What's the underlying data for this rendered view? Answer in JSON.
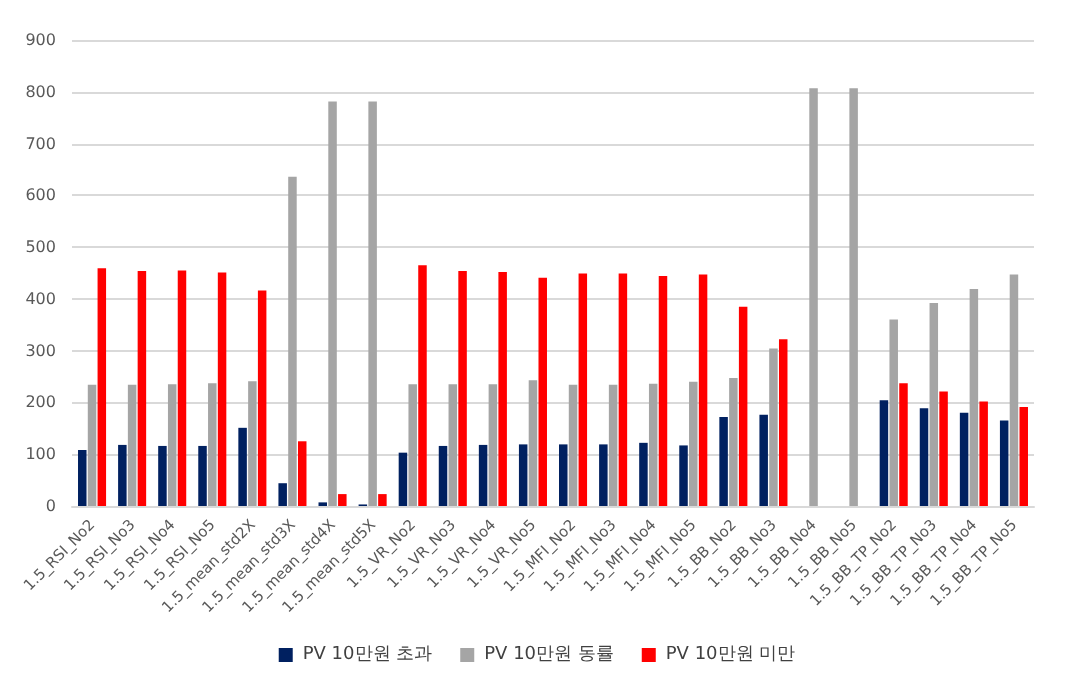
{
  "chart_data": {
    "type": "bar",
    "categories": [
      "1.5_RSI_No2",
      "1.5_RSI_No3",
      "1.5_RSI_No4",
      "1.5_RSI_No5",
      "1.5_mean_std2X",
      "1.5_mean_std3X",
      "1.5_mean_std4X",
      "1.5_mean_std5X",
      "1.5_VR_No2",
      "1.5_VR_No3",
      "1.5_VR_No4",
      "1.5_VR_No5",
      "1.5_MFI_No2",
      "1.5_MFI_No3",
      "1.5_MFI_No4",
      "1.5_MFI_No5",
      "1.5_BB_No2",
      "1.5_BB_No3",
      "1.5_BB_No4",
      "1.5_BB_No5",
      "1.5_BB_TP_No2",
      "1.5_BB_TP_No3",
      "1.5_BB_TP_No4",
      "1.5_BB_TP_No5"
    ],
    "series": [
      {
        "name": "PV 10만원 초과",
        "color": "#002060",
        "values": [
          108,
          118,
          116,
          116,
          151,
          44,
          7,
          3,
          103,
          116,
          118,
          119,
          119,
          119,
          122,
          117,
          172,
          176,
          0,
          0,
          204,
          189,
          180,
          165
        ]
      },
      {
        "name": "PV 10만원 동률",
        "color": "#a5a5a5",
        "values": [
          234,
          234,
          235,
          237,
          241,
          636,
          781,
          781,
          235,
          235,
          235,
          243,
          234,
          234,
          236,
          240,
          247,
          304,
          807,
          807,
          360,
          392,
          419,
          447
        ]
      },
      {
        "name": "PV 10만원 미만",
        "color": "#ff0000",
        "values": [
          459,
          454,
          455,
          451,
          416,
          125,
          23,
          23,
          465,
          454,
          452,
          441,
          449,
          449,
          444,
          447,
          385,
          322,
          0,
          0,
          237,
          221,
          202,
          191
        ]
      }
    ],
    "ylim": [
      0,
      900
    ],
    "yticks": [
      0,
      100,
      200,
      300,
      400,
      500,
      600,
      700,
      800,
      900
    ],
    "grid": "y",
    "legend": "bottom"
  }
}
